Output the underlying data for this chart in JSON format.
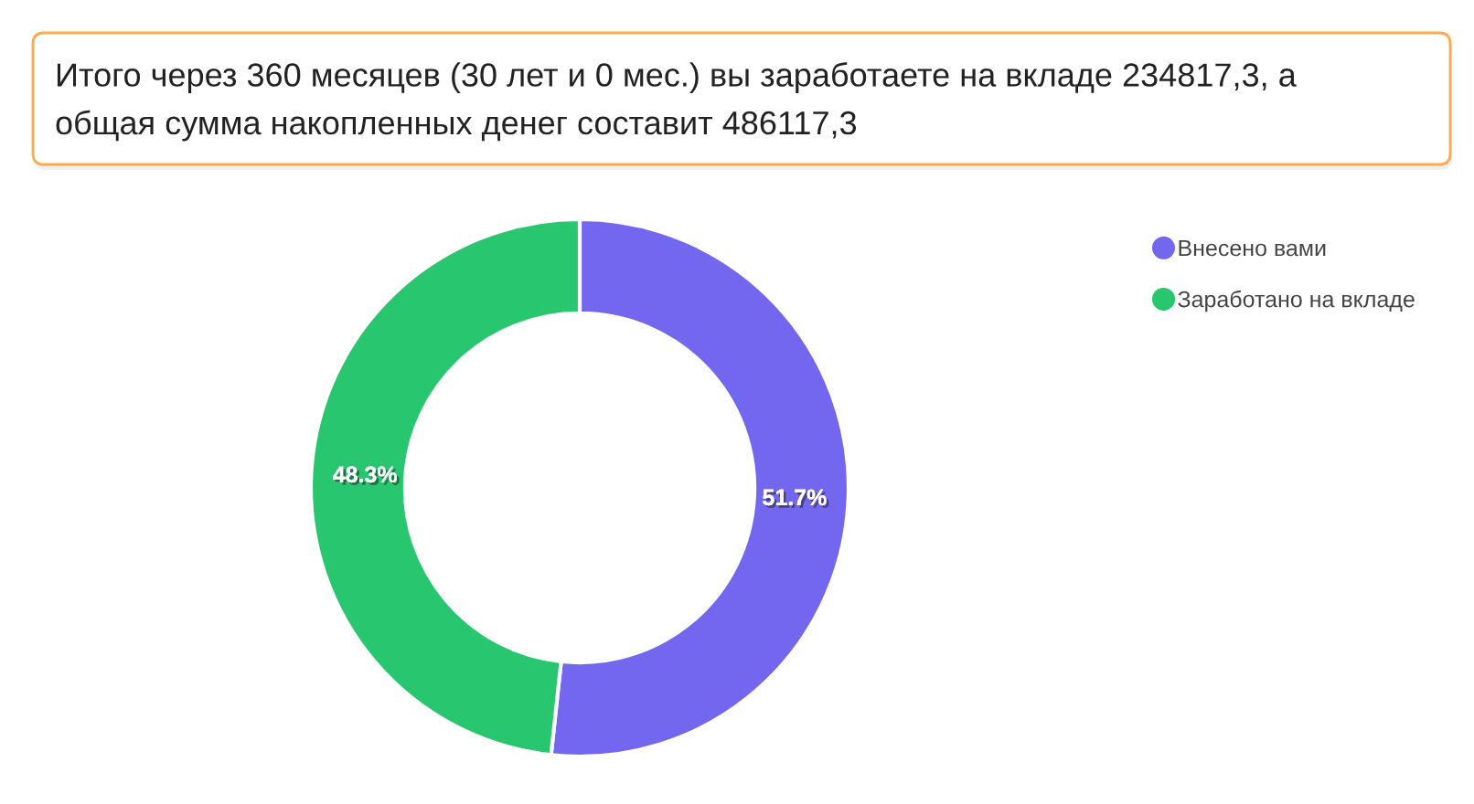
{
  "chart_data": {
    "type": "donut",
    "title": "Итого через 360 месяцев (30 лет и 0 мес.) вы заработаете на вкладе 234817,3, а общая сумма накопленных денег составит 486117,3",
    "categories": [
      "Внесено вами",
      "Заработано на вкладе"
    ],
    "values": [
      51.7,
      48.3
    ],
    "colors": [
      "#7367f0",
      "#28c76f"
    ],
    "value_labels": [
      "51.7%",
      "48.3%"
    ],
    "legend": "top right",
    "marker": "circle"
  }
}
